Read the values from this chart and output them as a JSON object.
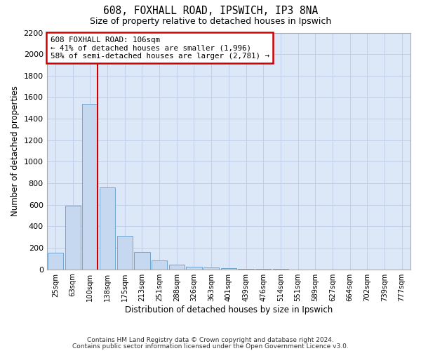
{
  "title1": "608, FOXHALL ROAD, IPSWICH, IP3 8NA",
  "title2": "Size of property relative to detached houses in Ipswich",
  "xlabel": "Distribution of detached houses by size in Ipswich",
  "ylabel": "Number of detached properties",
  "categories": [
    "25sqm",
    "63sqm",
    "100sqm",
    "138sqm",
    "175sqm",
    "213sqm",
    "251sqm",
    "288sqm",
    "326sqm",
    "363sqm",
    "401sqm",
    "439sqm",
    "476sqm",
    "514sqm",
    "551sqm",
    "589sqm",
    "627sqm",
    "664sqm",
    "702sqm",
    "739sqm",
    "777sqm"
  ],
  "values": [
    155,
    590,
    1540,
    760,
    310,
    160,
    80,
    43,
    25,
    18,
    12,
    5,
    3,
    2,
    1,
    0,
    0,
    0,
    0,
    0,
    0
  ],
  "bar_color": "#c5d8f0",
  "bar_edge_color": "#6ea6d0",
  "annotation_text": "608 FOXHALL ROAD: 106sqm\n← 41% of detached houses are smaller (1,996)\n58% of semi-detached houses are larger (2,781) →",
  "annotation_box_color": "#ffffff",
  "annotation_box_edge": "#cc0000",
  "redline_color": "#cc0000",
  "ylim": [
    0,
    2200
  ],
  "yticks": [
    0,
    200,
    400,
    600,
    800,
    1000,
    1200,
    1400,
    1600,
    1800,
    2000,
    2200
  ],
  "footer1": "Contains HM Land Registry data © Crown copyright and database right 2024.",
  "footer2": "Contains public sector information licensed under the Open Government Licence v3.0.",
  "grid_color": "#c0cfe8",
  "background_color": "#dce8f8"
}
